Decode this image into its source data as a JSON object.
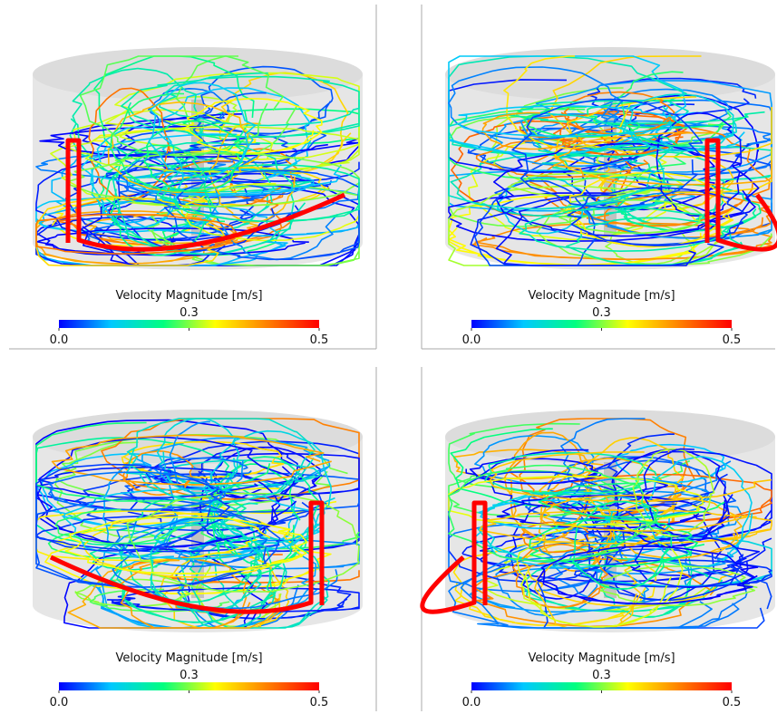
{
  "panels": [
    {
      "colorbar": {
        "label": "Velocity Magnitude [m/s]",
        "lim": [
          0,
          0.5
        ],
        "ticks": [
          {
            "value": 0,
            "label": "0.0"
          },
          {
            "value": 0.25,
            "label": "0.3"
          },
          0.5
        ],
        "colors": [
          "#0000ff",
          "#00c8ff",
          "#00ff80",
          "#ffff00",
          "#ff8000",
          "#ff0000"
        ]
      }
    },
    {
      "colorbar": {
        "label": "Velocity Magnitude [m/s]",
        "lim": [
          0,
          0.5
        ],
        "ticks": [
          {
            "value": 0,
            "label": "0.0"
          },
          {
            "value": 0.25,
            "label": "0.3"
          },
          0.5
        ],
        "colors": [
          "#0000ff",
          "#00c8ff",
          "#00ff80",
          "#ffff00",
          "#ff8000",
          "#ff0000"
        ]
      }
    },
    {
      "colorbar": {
        "label": "Velocity Magnitude [m/s]",
        "lim": [
          0,
          0.5
        ],
        "ticks": [
          {
            "value": 0,
            "label": "0.0"
          },
          {
            "value": 0.25,
            "label": "0.3"
          },
          0.5
        ],
        "colors": [
          "#0000ff",
          "#00c8ff",
          "#00ff80",
          "#ffff00",
          "#ff8000",
          "#ff0000"
        ]
      }
    },
    {
      "colorbar": {
        "label": "Velocity Magnitude [m/s]",
        "lim": [
          0,
          0.5
        ],
        "ticks": [
          {
            "value": 0,
            "label": "0.0"
          },
          {
            "value": 0.25,
            "label": "0.3"
          },
          0.5
        ],
        "colors": [
          "#0000ff",
          "#00c8ff",
          "#00ff80",
          "#ffff00",
          "#ff8000",
          "#ff0000"
        ]
      }
    }
  ]
}
